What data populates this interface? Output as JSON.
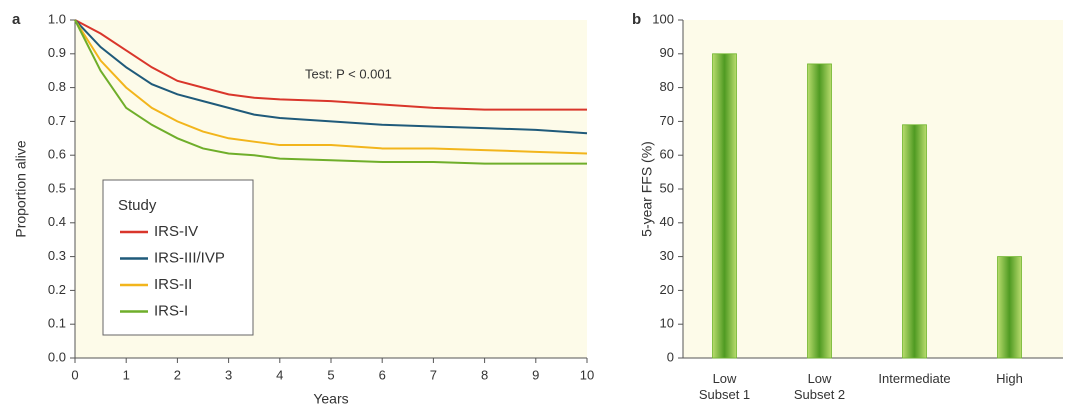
{
  "chart_data": [
    {
      "type": "line",
      "panel_label": "a",
      "xlabel": "Years",
      "ylabel": "Proportion alive",
      "annotation": "Test: P < 0.001",
      "x": [
        0,
        0.5,
        1,
        1.5,
        2,
        2.5,
        3,
        3.5,
        4,
        5,
        6,
        7,
        8,
        9,
        10
      ],
      "series": [
        {
          "name": "IRS-IV",
          "color": "#d9362b",
          "values": [
            1.0,
            0.96,
            0.91,
            0.86,
            0.82,
            0.8,
            0.78,
            0.77,
            0.765,
            0.76,
            0.75,
            0.74,
            0.735,
            0.735,
            0.735
          ]
        },
        {
          "name": "IRS-III/IVP",
          "color": "#1f5a7a",
          "values": [
            1.0,
            0.92,
            0.86,
            0.81,
            0.78,
            0.76,
            0.74,
            0.72,
            0.71,
            0.7,
            0.69,
            0.685,
            0.68,
            0.675,
            0.665
          ]
        },
        {
          "name": "IRS-II",
          "color": "#f2b51c",
          "values": [
            1.0,
            0.88,
            0.8,
            0.74,
            0.7,
            0.67,
            0.65,
            0.64,
            0.63,
            0.63,
            0.62,
            0.62,
            0.615,
            0.61,
            0.605
          ]
        },
        {
          "name": "IRS-I",
          "color": "#6fae2a",
          "values": [
            1.0,
            0.85,
            0.74,
            0.69,
            0.65,
            0.62,
            0.605,
            0.6,
            0.59,
            0.585,
            0.58,
            0.58,
            0.575,
            0.575,
            0.575
          ]
        }
      ],
      "legend_title": "Study",
      "legend": "lower left",
      "xlim": [
        0,
        10
      ],
      "xticks": [
        0,
        1,
        2,
        3,
        4,
        5,
        6,
        7,
        8,
        9,
        10
      ],
      "ylim": [
        0,
        1
      ],
      "yticks": [
        {
          "value": 0,
          "label": "0.0"
        },
        0.1,
        0.2,
        0.3,
        0.4,
        0.5,
        0.6,
        0.7,
        0.8,
        0.9,
        {
          "value": 1,
          "label": "1.0"
        }
      ]
    },
    {
      "type": "bar",
      "panel_label": "b",
      "ylabel": "5-year FFS (%)",
      "categories": [
        "Low\nSubset 1",
        "Low\nSubset 2",
        "Intermediate",
        "High"
      ],
      "values": [
        90,
        87,
        69,
        30
      ],
      "color": "#6fb52c",
      "ylim": [
        0,
        100
      ],
      "yticks": [
        0,
        10,
        20,
        30,
        40,
        50,
        60,
        70,
        80,
        90,
        100
      ]
    }
  ]
}
